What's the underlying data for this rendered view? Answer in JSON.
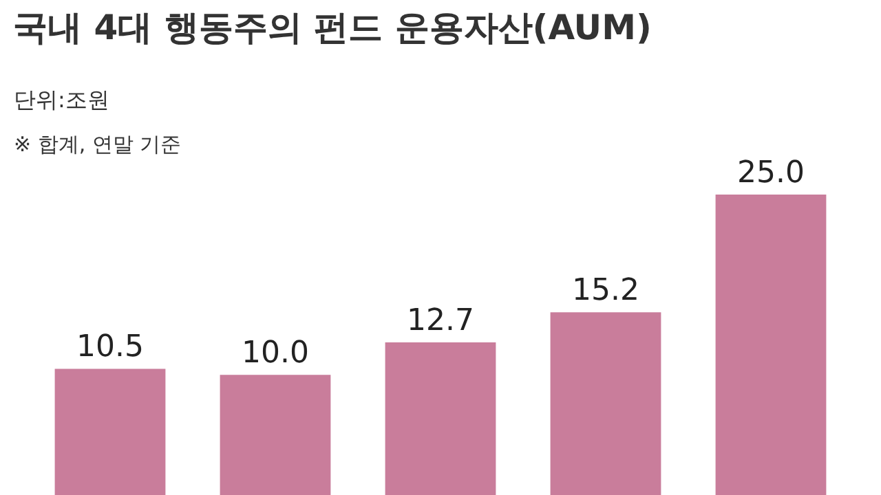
{
  "chart_data": {
    "type": "bar",
    "title": "국내 4대 행동주의 펀드 운용자산(AUM)",
    "subtitle": "단위:조원",
    "annotations": [
      "※ 합계, 연말 기준"
    ],
    "categories": [
      null,
      null,
      null,
      null,
      null
    ],
    "values": [
      10.5,
      10.0,
      12.7,
      15.2,
      25.0
    ],
    "value_labels": [
      "10.5",
      "10.0",
      "12.7",
      "15.2",
      "25.0"
    ],
    "color": "#c97d9b"
  }
}
